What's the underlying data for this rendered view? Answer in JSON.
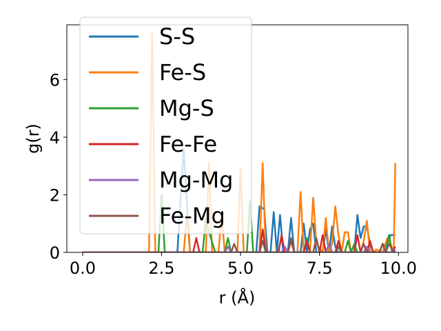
{
  "chart_data": {
    "type": "line",
    "xlabel": "r (Å)",
    "ylabel": "g(r)",
    "xlim": [
      -0.5,
      10.3
    ],
    "ylim": [
      0,
      7.9
    ],
    "xticks": [
      0.0,
      2.5,
      5.0,
      7.5,
      10.0
    ],
    "xtick_labels": [
      "0.0",
      "2.5",
      "5.0",
      "7.5",
      "10.0"
    ],
    "yticks": [
      0,
      2,
      4,
      6
    ],
    "ytick_labels": [
      "0",
      "2",
      "4",
      "6"
    ],
    "grid": false,
    "legend_position": "upper-left",
    "series": [
      {
        "name": "S-S",
        "color": "#1f77b4",
        "points": [
          [
            0,
            0
          ],
          [
            3.0,
            0
          ],
          [
            3.2,
            3.6
          ],
          [
            3.4,
            0
          ],
          [
            5.5,
            0
          ],
          [
            5.6,
            1.6
          ],
          [
            5.75,
            1.5
          ],
          [
            5.85,
            0
          ],
          [
            5.95,
            0
          ],
          [
            6.05,
            1.4
          ],
          [
            6.15,
            0
          ],
          [
            6.25,
            1.3
          ],
          [
            6.35,
            0
          ],
          [
            6.5,
            0
          ],
          [
            6.6,
            1.2
          ],
          [
            6.7,
            0
          ],
          [
            6.9,
            0
          ],
          [
            7.0,
            1.0
          ],
          [
            7.1,
            0
          ],
          [
            7.2,
            0.8
          ],
          [
            7.3,
            1.0
          ],
          [
            7.4,
            0
          ],
          [
            7.6,
            0
          ],
          [
            7.7,
            0.8
          ],
          [
            7.8,
            0
          ],
          [
            7.9,
            0.9
          ],
          [
            8.0,
            0.2
          ],
          [
            8.1,
            0
          ],
          [
            8.6,
            0
          ],
          [
            8.7,
            1.3
          ],
          [
            8.8,
            0.5
          ],
          [
            8.9,
            0.9
          ],
          [
            9.0,
            0.9
          ],
          [
            9.1,
            0.3
          ],
          [
            9.2,
            0
          ],
          [
            9.4,
            0
          ],
          [
            9.5,
            0.3
          ],
          [
            9.6,
            0.2
          ],
          [
            9.75,
            0.6
          ],
          [
            9.85,
            0.6
          ],
          [
            9.9,
            0.6
          ]
        ]
      },
      {
        "name": "Fe-S",
        "color": "#ff7f0e",
        "points": [
          [
            0,
            0
          ],
          [
            2.1,
            0
          ],
          [
            2.2,
            7.6
          ],
          [
            2.3,
            0
          ],
          [
            3.2,
            0
          ],
          [
            3.3,
            1.3
          ],
          [
            3.4,
            0
          ],
          [
            3.9,
            0
          ],
          [
            4.0,
            3.1
          ],
          [
            4.1,
            0
          ],
          [
            4.3,
            0
          ],
          [
            4.4,
            1.3
          ],
          [
            4.5,
            0
          ],
          [
            4.9,
            0
          ],
          [
            5.0,
            2.9
          ],
          [
            5.1,
            0
          ],
          [
            5.6,
            0
          ],
          [
            5.7,
            3.1
          ],
          [
            5.8,
            0
          ],
          [
            6.8,
            0
          ],
          [
            6.9,
            2.1
          ],
          [
            7.0,
            0
          ],
          [
            7.2,
            0
          ],
          [
            7.3,
            1.9
          ],
          [
            7.4,
            0.3
          ],
          [
            7.6,
            0
          ],
          [
            7.7,
            1.2
          ],
          [
            7.8,
            0
          ],
          [
            7.9,
            0.3
          ],
          [
            8.0,
            1.6
          ],
          [
            8.1,
            0.6
          ],
          [
            8.2,
            0
          ],
          [
            8.3,
            0.7
          ],
          [
            8.4,
            0.7
          ],
          [
            8.5,
            0
          ],
          [
            8.8,
            0
          ],
          [
            8.9,
            0.4
          ],
          [
            9.0,
            1.1
          ],
          [
            9.1,
            0
          ],
          [
            9.2,
            0
          ],
          [
            9.3,
            0.1
          ],
          [
            9.5,
            0
          ],
          [
            9.65,
            0.5
          ],
          [
            9.75,
            0.3
          ],
          [
            9.85,
            0
          ],
          [
            9.9,
            3.1
          ]
        ]
      },
      {
        "name": "Mg-S",
        "color": "#2ca02c",
        "points": [
          [
            0,
            0
          ],
          [
            2.4,
            0
          ],
          [
            2.5,
            2.0
          ],
          [
            2.6,
            0
          ],
          [
            3.8,
            0
          ],
          [
            3.9,
            1.2
          ],
          [
            4.0,
            0.7
          ],
          [
            4.2,
            0
          ],
          [
            4.5,
            0
          ],
          [
            4.6,
            0.5
          ],
          [
            4.7,
            0
          ],
          [
            5.2,
            0
          ],
          [
            5.3,
            1.8
          ],
          [
            5.4,
            0
          ],
          [
            7.0,
            0
          ],
          [
            7.1,
            0.5
          ],
          [
            7.2,
            0
          ],
          [
            7.7,
            0
          ],
          [
            7.8,
            0.3
          ],
          [
            7.9,
            0
          ],
          [
            8.3,
            0
          ],
          [
            8.4,
            0.4
          ],
          [
            8.5,
            0
          ],
          [
            8.6,
            0.3
          ],
          [
            8.7,
            0
          ],
          [
            9.6,
            0
          ],
          [
            9.7,
            0.6
          ],
          [
            9.8,
            0
          ]
        ]
      },
      {
        "name": "Fe-Fe",
        "color": "#d62728",
        "points": [
          [
            0,
            0
          ],
          [
            3.5,
            0
          ],
          [
            3.6,
            0.5
          ],
          [
            3.7,
            0
          ],
          [
            5.6,
            0
          ],
          [
            5.7,
            0.8
          ],
          [
            5.8,
            0
          ],
          [
            6.2,
            0
          ],
          [
            6.3,
            0.6
          ],
          [
            6.4,
            0
          ],
          [
            6.5,
            0
          ],
          [
            6.6,
            0.4
          ],
          [
            6.7,
            0
          ],
          [
            7.0,
            0
          ],
          [
            7.1,
            0.4
          ],
          [
            7.2,
            0
          ],
          [
            7.5,
            0
          ],
          [
            7.6,
            0.6
          ],
          [
            7.7,
            0
          ],
          [
            8.0,
            0
          ],
          [
            8.1,
            0.4
          ],
          [
            8.2,
            0
          ],
          [
            8.6,
            0
          ],
          [
            8.7,
            0.6
          ],
          [
            8.8,
            0
          ],
          [
            9.0,
            0
          ],
          [
            9.1,
            0.4
          ],
          [
            9.2,
            0
          ],
          [
            9.4,
            0
          ],
          [
            9.5,
            0.3
          ],
          [
            9.6,
            0
          ],
          [
            9.8,
            0
          ],
          [
            9.9,
            0.2
          ]
        ]
      },
      {
        "name": "Mg-Mg",
        "color": "#9467bd",
        "points": [
          [
            0,
            0
          ],
          [
            4.5,
            0
          ],
          [
            4.6,
            0.2
          ],
          [
            4.7,
            0
          ],
          [
            6.3,
            0
          ],
          [
            6.4,
            0.2
          ],
          [
            6.5,
            0
          ],
          [
            7.7,
            0
          ],
          [
            7.8,
            0.3
          ],
          [
            7.9,
            0
          ],
          [
            8.9,
            0
          ],
          [
            9.0,
            0.2
          ],
          [
            9.1,
            0
          ],
          [
            9.8,
            0
          ],
          [
            9.9,
            0.1
          ]
        ]
      },
      {
        "name": "Fe-Mg",
        "color": "#8c564b",
        "points": [
          [
            0,
            0
          ],
          [
            4.7,
            0
          ],
          [
            4.8,
            0.3
          ],
          [
            4.9,
            0
          ],
          [
            5.6,
            0
          ],
          [
            5.7,
            0.4
          ],
          [
            5.8,
            0
          ],
          [
            6.5,
            0
          ],
          [
            6.6,
            0.5
          ],
          [
            6.7,
            0
          ],
          [
            7.3,
            0
          ],
          [
            7.4,
            0.5
          ],
          [
            7.5,
            0
          ],
          [
            8.0,
            0
          ],
          [
            8.1,
            0.2
          ],
          [
            8.2,
            0
          ],
          [
            8.8,
            0
          ],
          [
            8.9,
            0.3
          ],
          [
            9.0,
            0
          ],
          [
            9.4,
            0
          ],
          [
            9.5,
            0.3
          ],
          [
            9.6,
            0
          ],
          [
            9.7,
            0.3
          ],
          [
            9.8,
            0.1
          ],
          [
            9.9,
            0
          ]
        ]
      }
    ]
  }
}
